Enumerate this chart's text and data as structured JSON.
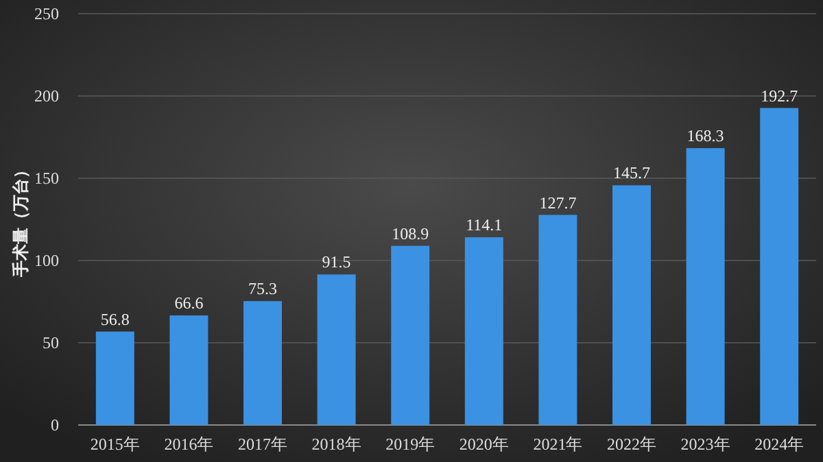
{
  "chart_data": {
    "type": "bar",
    "ylabel": "手术量（万台）",
    "categories": [
      "2015年",
      "2016年",
      "2017年",
      "2018年",
      "2019年",
      "2020年",
      "2021年",
      "2022年",
      "2023年",
      "2024年"
    ],
    "values": [
      56.8,
      66.6,
      75.3,
      91.5,
      108.9,
      114.1,
      127.7,
      145.7,
      168.3,
      192.7
    ],
    "color": "#3b92e2",
    "ylim": [
      0,
      250
    ],
    "yticks": [
      0,
      50,
      100,
      150,
      200,
      250
    ],
    "grid": "y",
    "data_labels": true
  }
}
